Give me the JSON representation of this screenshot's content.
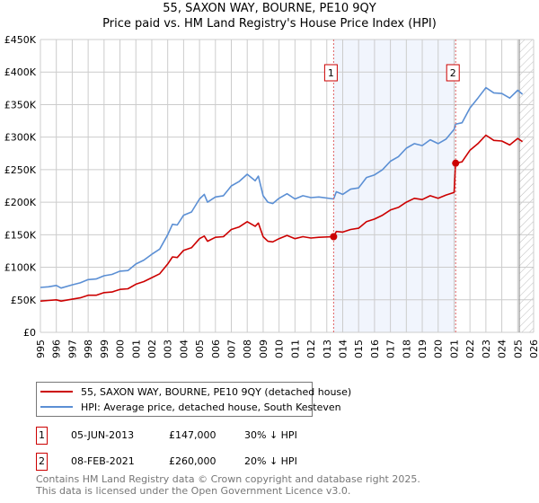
{
  "title": "55, SAXON WAY, BOURNE, PE10 9QY",
  "subtitle": "Price paid vs. HM Land Registry's House Price Index (HPI)",
  "chart_data": {
    "type": "line",
    "title": "55, SAXON WAY, BOURNE, PE10 9QY",
    "subtitle": "Price paid vs. HM Land Registry's House Price Index (HPI)",
    "xlabel": "",
    "ylabel": "",
    "xlim": [
      1995,
      2026
    ],
    "ylim": [
      0,
      450000
    ],
    "grid": true,
    "y_ticks": [
      0,
      50000,
      100000,
      150000,
      200000,
      250000,
      300000,
      350000,
      400000,
      450000
    ],
    "y_tick_labels": [
      "£0",
      "£50K",
      "£100K",
      "£150K",
      "£200K",
      "£250K",
      "£300K",
      "£350K",
      "£400K",
      "£450K"
    ],
    "x_ticks": [
      "1995",
      "1996",
      "1997",
      "1998",
      "1999",
      "2000",
      "2001",
      "2002",
      "2003",
      "2004",
      "2005",
      "2006",
      "2007",
      "2008",
      "2009",
      "2010",
      "2011",
      "2012",
      "2013",
      "2014",
      "2015",
      "2016",
      "2017",
      "2018",
      "2019",
      "2020",
      "2021",
      "2022",
      "2023",
      "2024",
      "2025",
      "2026"
    ],
    "series": [
      {
        "name": "55, SAXON WAY, BOURNE, PE10 9QY (detached house)",
        "color": "#cc0000",
        "x": [
          1995,
          1995.5,
          1996,
          1996.3,
          1997,
          1997.5,
          1998,
          1998.5,
          1999,
          1999.5,
          2000,
          2000.5,
          2001,
          2001.5,
          2002,
          2002.5,
          2003,
          2003.3,
          2003.6,
          2004,
          2004.5,
          2005,
          2005.3,
          2005.5,
          2006,
          2006.5,
          2007,
          2007.5,
          2008,
          2008.5,
          2008.7,
          2009,
          2009.3,
          2009.6,
          2010,
          2010.5,
          2011,
          2011.5,
          2012,
          2012.5,
          2013.43,
          2013.6,
          2014,
          2014.5,
          2015,
          2015.5,
          2016,
          2016.5,
          2017,
          2017.5,
          2018,
          2018.5,
          2019,
          2019.5,
          2020,
          2020.5,
          2021.0,
          2021.1,
          2021.5,
          2022,
          2022.5,
          2023,
          2023.5,
          2024,
          2024.5,
          2025,
          2025.3
        ],
        "y": [
          48000,
          49000,
          50000,
          48000,
          51000,
          53000,
          57000,
          57000,
          61000,
          62000,
          66000,
          67000,
          74000,
          78000,
          84000,
          90000,
          105000,
          116000,
          115000,
          126000,
          130000,
          144000,
          148000,
          140000,
          146000,
          147000,
          158000,
          162000,
          170000,
          163000,
          168000,
          147000,
          140000,
          139000,
          144000,
          149000,
          144000,
          147000,
          145000,
          146000,
          147000,
          155000,
          154000,
          158000,
          160000,
          170000,
          174000,
          180000,
          188000,
          192000,
          200000,
          206000,
          204000,
          210000,
          206000,
          211000,
          215000,
          260000,
          262000,
          280000,
          290000,
          303000,
          295000,
          294000,
          288000,
          298000,
          293000
        ]
      },
      {
        "name": "HPI: Average price, detached house, South Kesteven",
        "color": "#5b8fd4",
        "x": [
          1995,
          1995.5,
          1996,
          1996.3,
          1997,
          1997.5,
          1998,
          1998.5,
          1999,
          1999.5,
          2000,
          2000.5,
          2001,
          2001.5,
          2002,
          2002.5,
          2003,
          2003.3,
          2003.6,
          2004,
          2004.5,
          2005,
          2005.3,
          2005.5,
          2006,
          2006.5,
          2007,
          2007.5,
          2008,
          2008.5,
          2008.7,
          2009,
          2009.3,
          2009.6,
          2010,
          2010.5,
          2011,
          2011.5,
          2012,
          2012.5,
          2013.43,
          2013.6,
          2014,
          2014.5,
          2015,
          2015.5,
          2016,
          2016.5,
          2017,
          2017.5,
          2018,
          2018.5,
          2019,
          2019.5,
          2020,
          2020.5,
          2021.0,
          2021.1,
          2021.5,
          2022,
          2022.5,
          2023,
          2023.5,
          2024,
          2024.5,
          2025,
          2025.3
        ],
        "y": [
          69000,
          70000,
          72000,
          68000,
          73000,
          76000,
          81000,
          82000,
          87000,
          89000,
          94000,
          95000,
          105000,
          111000,
          120000,
          128000,
          150000,
          166000,
          165000,
          180000,
          185000,
          205000,
          212000,
          200000,
          208000,
          210000,
          225000,
          232000,
          243000,
          233000,
          240000,
          210000,
          200000,
          198000,
          206000,
          213000,
          205000,
          210000,
          207000,
          208000,
          205000,
          216000,
          212000,
          220000,
          222000,
          238000,
          242000,
          250000,
          263000,
          270000,
          283000,
          290000,
          287000,
          296000,
          290000,
          297000,
          312000,
          320000,
          322000,
          345000,
          360000,
          376000,
          368000,
          367000,
          360000,
          372000,
          366000
        ]
      }
    ],
    "sales": [
      {
        "id": "1",
        "x": 2013.43,
        "price": 147000
      },
      {
        "id": "2",
        "x": 2021.1,
        "price": 260000
      }
    ],
    "shaded_range": [
      2013.43,
      2021.1
    ],
    "hatched_from": 2025.1,
    "legend_placement": "below"
  },
  "legend": [
    {
      "label": "55, SAXON WAY, BOURNE, PE10 9QY (detached house)",
      "color": "#cc0000"
    },
    {
      "label": "HPI: Average price, detached house, South Kesteven",
      "color": "#5b8fd4"
    }
  ],
  "transactions": [
    {
      "id": "1",
      "date": "05-JUN-2013",
      "price": "£147,000",
      "hpi": "30% ↓ HPI"
    },
    {
      "id": "2",
      "date": "08-FEB-2021",
      "price": "£260,000",
      "hpi": "20% ↓ HPI"
    }
  ],
  "footer": [
    "Contains HM Land Registry data © Crown copyright and database right 2025.",
    "This data is licensed under the Open Government Licence v3.0."
  ]
}
